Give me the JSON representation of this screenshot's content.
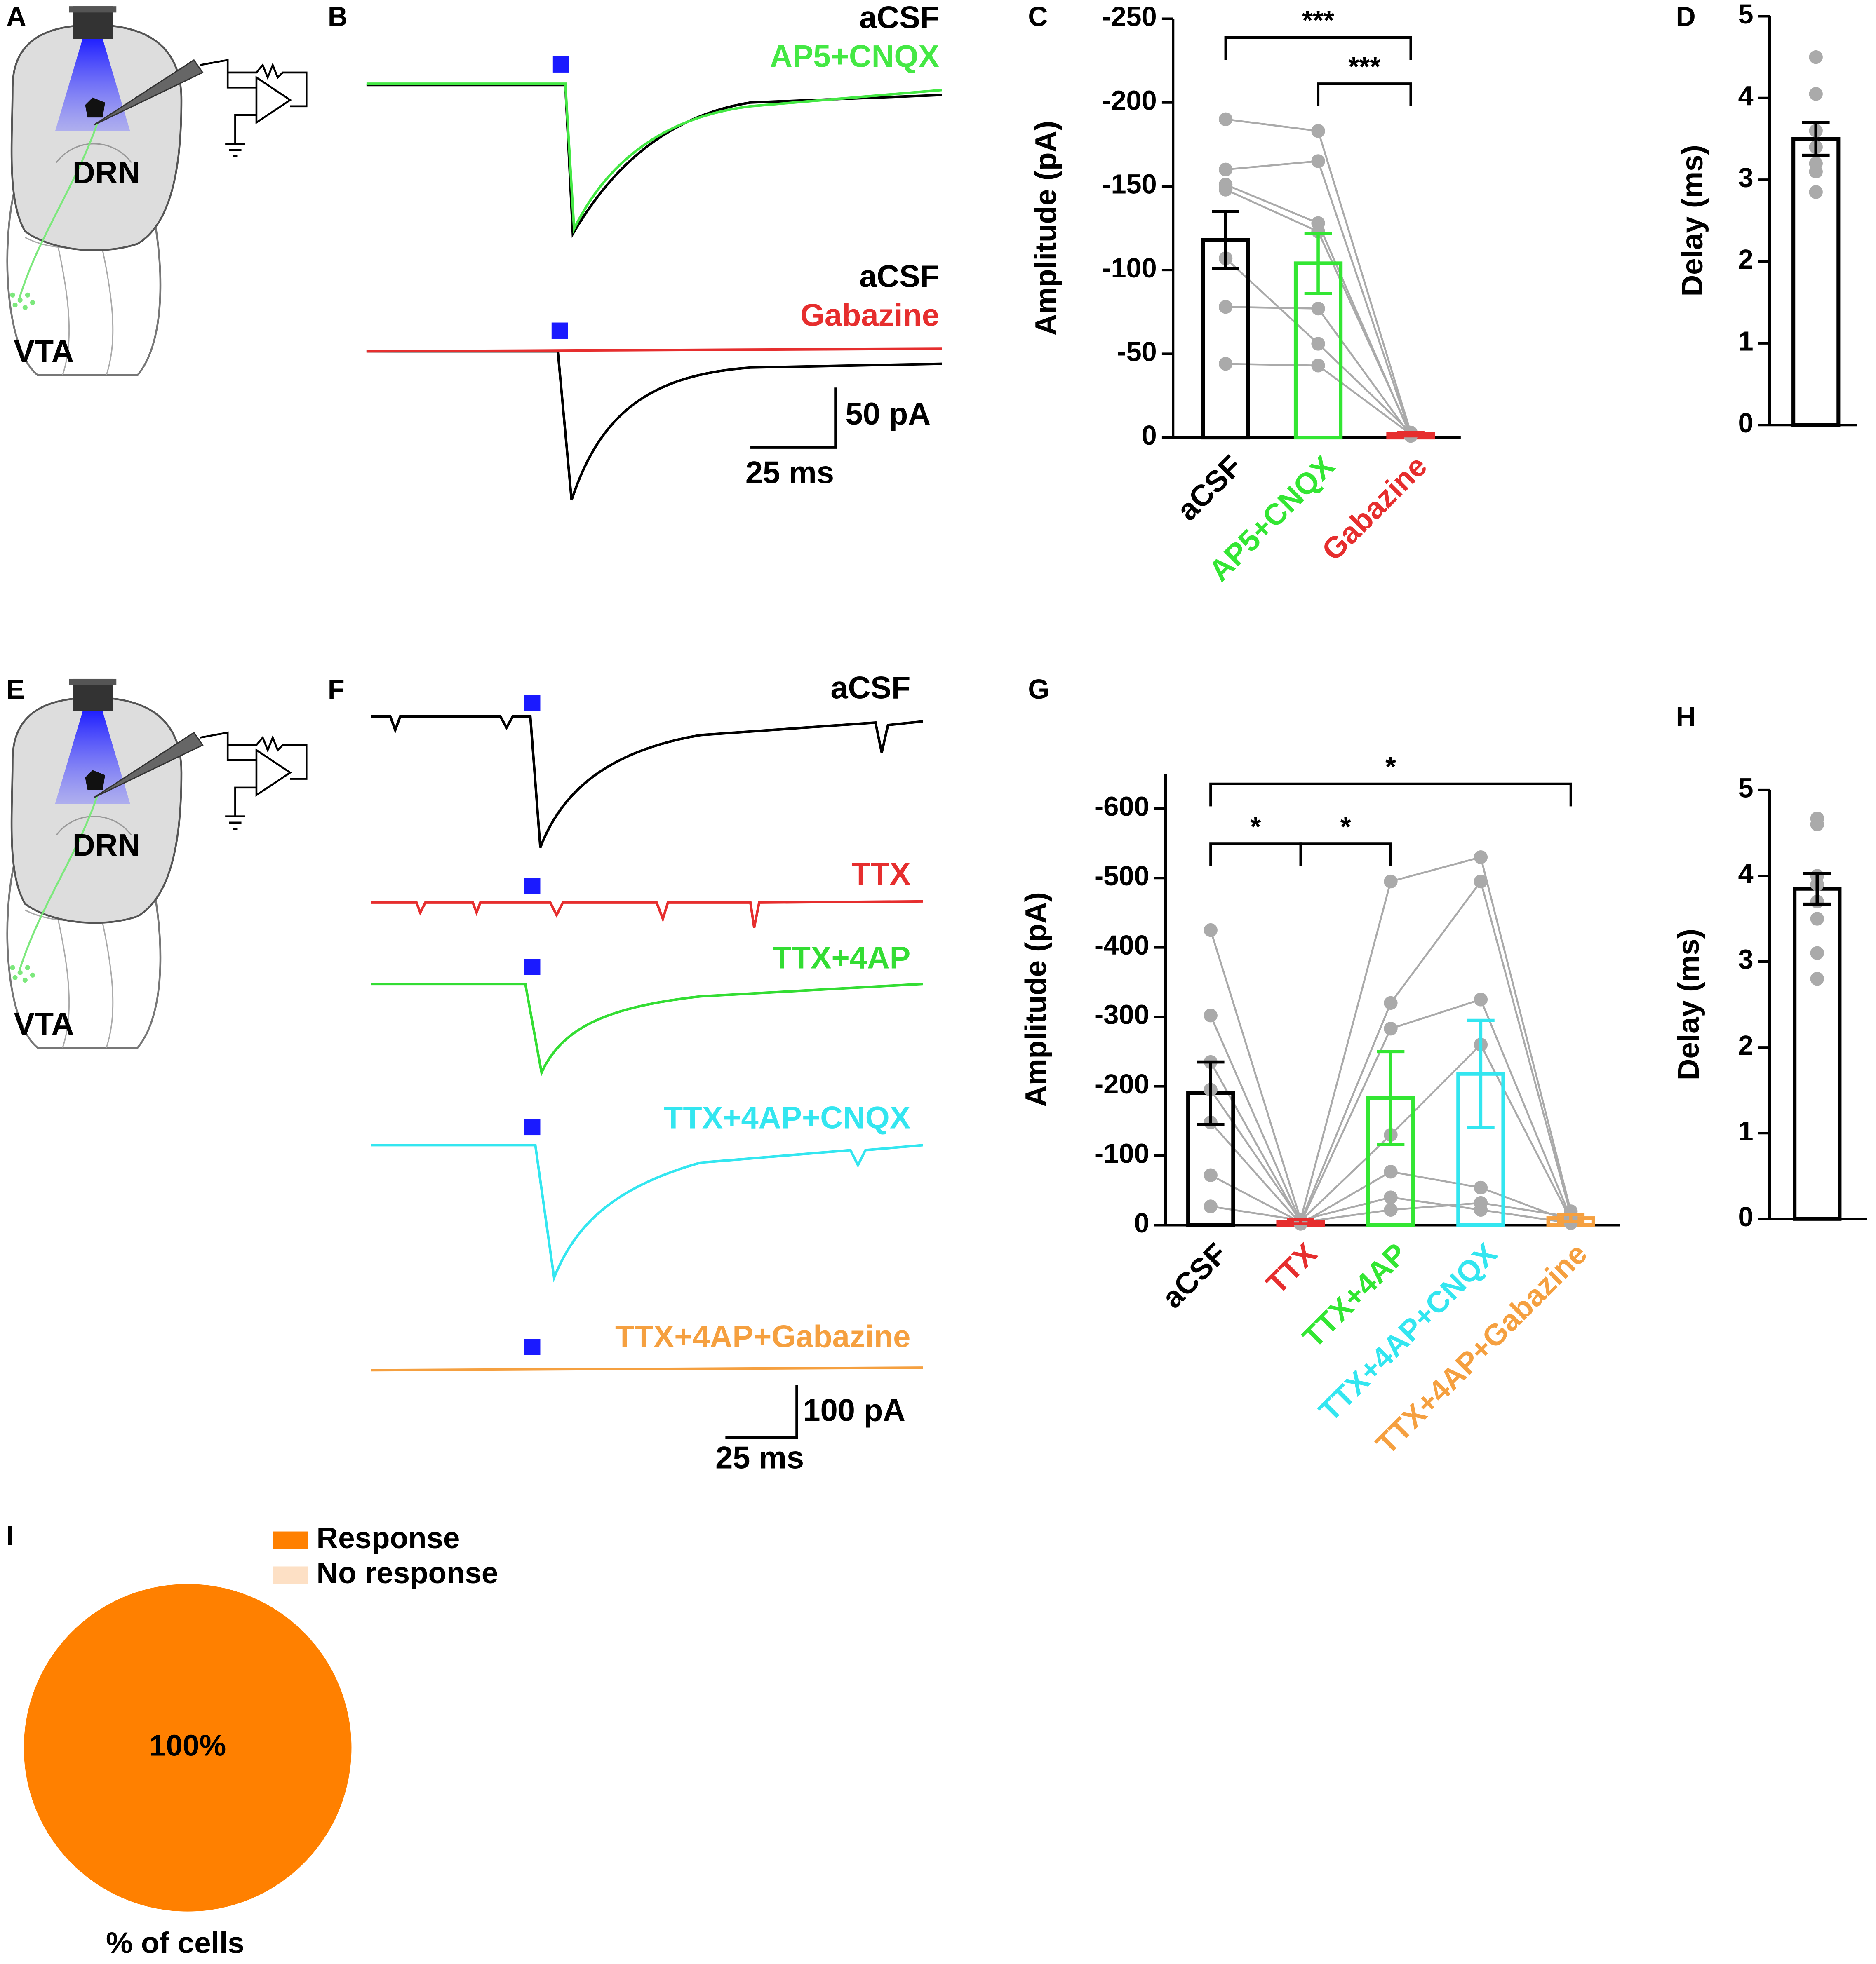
{
  "diagrams": [
    {
      "panel": "A",
      "labels": [
        "DRN",
        "VTA"
      ]
    },
    {
      "panel": "E",
      "labels": [
        "DRN",
        "VTA"
      ]
    }
  ],
  "traces": [
    {
      "panel": "B",
      "labels": [
        "aCSF",
        "AP5+CNQX",
        "aCSF",
        "Gabazine"
      ],
      "scale_y": "50 pA",
      "scale_x": "25 ms"
    },
    {
      "panel": "F",
      "labels": [
        "aCSF",
        "TTX",
        "TTX+4AP",
        "TTX+4AP+CNQX",
        "TTX+4AP+Gabazine"
      ],
      "scale_y": "100 pA",
      "scale_x": "25 ms"
    }
  ],
  "chart_data": [
    {
      "type": "bar",
      "panel": "C",
      "ylabel": "Amplitude (pA)",
      "categories": [
        "aCSF",
        "AP5+CNQX",
        "Gabazine"
      ],
      "colors": [
        "#000000",
        "#33e633",
        "#e62e2e"
      ],
      "values": [
        -118,
        -104,
        -2
      ],
      "errors": [
        17,
        18,
        1
      ],
      "points": [
        [
          -190,
          -160,
          -151,
          -148,
          -107,
          -78,
          -44
        ],
        [
          -183,
          -165,
          -128,
          -123,
          -56,
          -77,
          -43
        ],
        [
          -3,
          -2,
          -1,
          -2,
          -3,
          -1,
          -2
        ]
      ],
      "paired": true,
      "ylim": [
        0,
        -250
      ],
      "yticks": [
        0,
        -50,
        -100,
        -150,
        -200,
        -250
      ],
      "significance": [
        {
          "from": 0,
          "to": 2,
          "label": "***"
        },
        {
          "from": 1,
          "to": 2,
          "label": "***"
        }
      ]
    },
    {
      "type": "bar",
      "panel": "D",
      "ylabel": "Delay (ms)",
      "colors": [
        "#000000"
      ],
      "values": [
        3.5
      ],
      "errors": [
        0.2
      ],
      "points": [
        [
          4.5,
          4.05,
          3.6,
          3.4,
          3.2,
          3.1,
          2.85
        ]
      ],
      "ylim": [
        0,
        5
      ],
      "yticks": [
        0,
        1,
        2,
        3,
        4,
        5
      ]
    },
    {
      "type": "bar",
      "panel": "G",
      "ylabel": "Amplitude (pA)",
      "categories": [
        "aCSF",
        "TTX",
        "TTX+4AP",
        "TTX+4AP+CNQX",
        "TTX+4AP+Gabazine"
      ],
      "colors": [
        "#000000",
        "#e62e2e",
        "#33e633",
        "#33e6f0",
        "#f5a040"
      ],
      "values": [
        -190,
        -5,
        -183,
        -218,
        -10
      ],
      "errors": [
        45,
        3,
        67,
        77,
        5
      ],
      "points": [
        [
          -425,
          -302,
          -235,
          -195,
          -148,
          -72,
          -27
        ],
        [
          -8,
          -5,
          -3,
          -6,
          -2,
          -4,
          -7
        ],
        [
          -495,
          -320,
          -283,
          -130,
          -77,
          -22,
          -40
        ],
        [
          -530,
          -495,
          -325,
          -260,
          -54,
          -32,
          -22
        ],
        [
          -20,
          -15,
          -10,
          -8,
          -5,
          -12,
          -3
        ]
      ],
      "paired": true,
      "ylim": [
        0,
        -650
      ],
      "yticks": [
        0,
        -100,
        -200,
        -300,
        -400,
        -500,
        -600
      ],
      "significance": [
        {
          "from": 0,
          "to": 4,
          "label": "*"
        },
        {
          "from": 0,
          "to": 1,
          "label": "*"
        },
        {
          "from": 1,
          "to": 2,
          "label": "*"
        }
      ]
    },
    {
      "type": "bar",
      "panel": "H",
      "ylabel": "Delay (ms)",
      "colors": [
        "#000000"
      ],
      "values": [
        3.85
      ],
      "errors": [
        0.18
      ],
      "points": [
        [
          4.67,
          4.6,
          4.0,
          3.9,
          3.7,
          3.5,
          3.1,
          2.8
        ]
      ],
      "ylim": [
        0,
        5
      ],
      "yticks": [
        0,
        1,
        2,
        3,
        4,
        5
      ]
    },
    {
      "type": "pie",
      "panel": "I",
      "xlabel": "% of cells",
      "labels": [
        "Response",
        "No response"
      ],
      "values": [
        100,
        0
      ],
      "value_labels": [
        "100%",
        null
      ],
      "colors": [
        "#ff8000",
        "#fde0c5"
      ]
    }
  ]
}
